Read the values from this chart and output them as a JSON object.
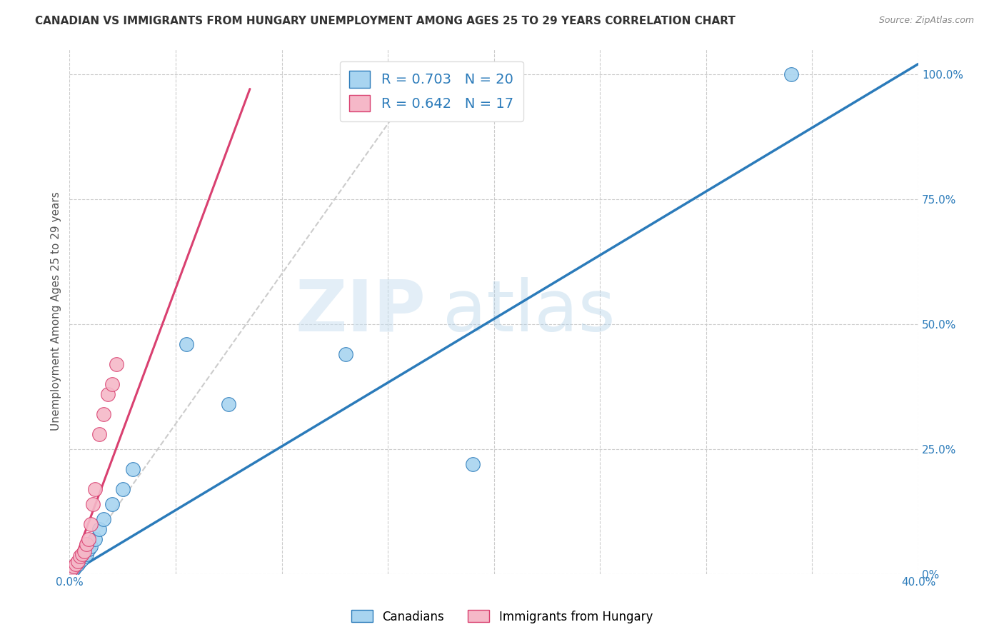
{
  "title": "CANADIAN VS IMMIGRANTS FROM HUNGARY UNEMPLOYMENT AMONG AGES 25 TO 29 YEARS CORRELATION CHART",
  "source": "Source: ZipAtlas.com",
  "ylabel": "Unemployment Among Ages 25 to 29 years",
  "xlim": [
    0.0,
    0.4
  ],
  "ylim": [
    0.0,
    1.05
  ],
  "x_ticks": [
    0.0,
    0.05,
    0.1,
    0.15,
    0.2,
    0.25,
    0.3,
    0.35,
    0.4
  ],
  "y_ticks_right": [
    0.0,
    0.25,
    0.5,
    0.75,
    1.0
  ],
  "y_tick_labels_right": [
    "0%",
    "25.0%",
    "50.0%",
    "75.0%",
    "100.0%"
  ],
  "canadian_color": "#a8d4f0",
  "hungarian_color": "#f5b8c8",
  "canadian_line_color": "#2b7bba",
  "hungarian_line_color": "#d94070",
  "r_canadian": 0.703,
  "n_canadian": 20,
  "r_hungarian": 0.642,
  "n_hungarian": 17,
  "watermark_zip": "ZIP",
  "watermark_atlas": "atlas",
  "canadian_x": [
    0.002,
    0.003,
    0.004,
    0.005,
    0.006,
    0.007,
    0.008,
    0.009,
    0.01,
    0.012,
    0.014,
    0.016,
    0.02,
    0.025,
    0.03,
    0.055,
    0.075,
    0.13,
    0.19,
    0.34
  ],
  "canadian_y": [
    0.01,
    0.015,
    0.02,
    0.025,
    0.03,
    0.035,
    0.04,
    0.05,
    0.055,
    0.07,
    0.09,
    0.11,
    0.14,
    0.17,
    0.21,
    0.46,
    0.34,
    0.44,
    0.22,
    1.0
  ],
  "hungarian_x": [
    0.001,
    0.002,
    0.003,
    0.004,
    0.005,
    0.006,
    0.007,
    0.008,
    0.009,
    0.01,
    0.011,
    0.012,
    0.014,
    0.016,
    0.018,
    0.02,
    0.022
  ],
  "hungarian_y": [
    0.01,
    0.015,
    0.02,
    0.025,
    0.035,
    0.04,
    0.045,
    0.06,
    0.07,
    0.1,
    0.14,
    0.17,
    0.28,
    0.32,
    0.36,
    0.38,
    0.42
  ],
  "blue_trend_x": [
    0.0,
    0.4
  ],
  "blue_trend_y": [
    0.0,
    1.02
  ],
  "grey_trend_x": [
    0.0,
    0.17
  ],
  "grey_trend_y": [
    0.0,
    1.02
  ],
  "pink_trend_x": [
    0.0,
    0.085
  ],
  "pink_trend_y": [
    0.0,
    0.97
  ],
  "background_color": "#ffffff",
  "grid_color": "#cccccc",
  "title_color": "#333333",
  "right_axis_color": "#2b7bba"
}
